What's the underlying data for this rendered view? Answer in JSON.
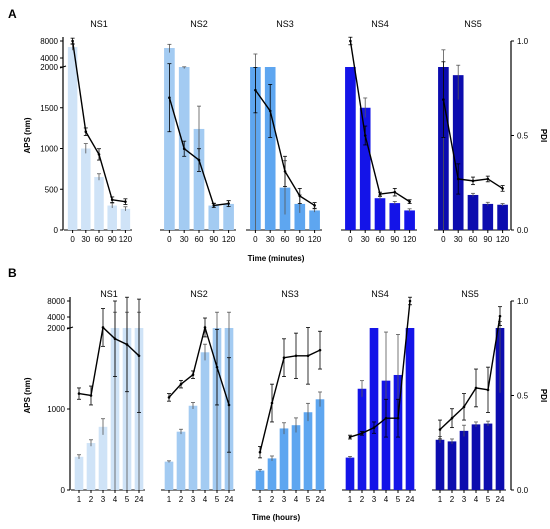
{
  "chart_data": [
    {
      "type": "bar",
      "panel_label": "A",
      "xlabel": "Time (minutes)",
      "ylabel": "APS (nm)",
      "y2label": "PDI",
      "ylim": [
        0,
        8000
      ],
      "y2lim": [
        0,
        1.0
      ],
      "y_axis_segments": [
        {
          "range": [
            0,
            2000
          ],
          "ticks": [
            "0",
            "500",
            "1000",
            "1500",
            "2000"
          ]
        },
        {
          "range": [
            2000,
            8000
          ],
          "ticks": [
            "4000",
            "8000"
          ]
        }
      ],
      "y2_ticks": [
        "0.0",
        "0.5",
        "1.0"
      ],
      "categories": [
        "0",
        "30",
        "60",
        "90",
        "120"
      ],
      "series": [
        {
          "name": "NS1",
          "color": "#cfe3f7",
          "values": [
            5800,
            1000,
            650,
            300,
            260
          ],
          "errors": [
            900,
            60,
            40,
            30,
            25
          ],
          "pdi": [
            1.0,
            0.52,
            0.4,
            0.16,
            0.15
          ],
          "pdi_errors": [
            0.015,
            0.02,
            0.03,
            0.015,
            0.015
          ]
        },
        {
          "name": "NS2",
          "color": "#a3cbf2",
          "values": [
            5500,
            2000,
            1240,
            300,
            320
          ],
          "errors": [
            1200,
            20,
            280,
            30,
            40
          ],
          "pdi": [
            0.7,
            0.43,
            0.37,
            0.13,
            0.14
          ],
          "pdi_errors": [
            0.18,
            0.04,
            0.06,
            0.01,
            0.015
          ]
        },
        {
          "name": "NS3",
          "color": "#5ea6f0",
          "values": [
            2000,
            2000,
            520,
            320,
            240
          ],
          "errors": [
            2000,
            0,
            330,
            110,
            20
          ],
          "pdi": [
            0.74,
            0.63,
            0.31,
            0.18,
            0.13
          ],
          "pdi_errors": [
            0.12,
            0.14,
            0.08,
            0.04,
            0.015
          ]
        },
        {
          "name": "NS4",
          "color": "#1414e8",
          "values": [
            2000,
            1500,
            390,
            330,
            240
          ],
          "errors": [
            0,
            120,
            20,
            20,
            20
          ],
          "pdi": [
            1.0,
            0.5,
            0.19,
            0.2,
            0.15
          ],
          "pdi_errors": [
            0.02,
            0.05,
            0.01,
            0.02,
            0.01
          ]
        },
        {
          "name": "NS5",
          "color": "#0c0cae",
          "values": [
            2000,
            1900,
            430,
            320,
            310
          ],
          "errors": [
            3000,
            300,
            20,
            20,
            15
          ],
          "pdi": [
            0.69,
            0.27,
            0.26,
            0.27,
            0.22
          ],
          "pdi_errors": [
            0.2,
            0.08,
            0.02,
            0.015,
            0.015
          ]
        }
      ]
    },
    {
      "type": "bar",
      "panel_label": "B",
      "xlabel": "Time (hours)",
      "ylabel": "APS (nm)",
      "y2label": "PDI",
      "ylim": [
        0,
        8000
      ],
      "y2lim": [
        0,
        1.0
      ],
      "y_axis_segments": [
        {
          "range": [
            0,
            2000
          ],
          "ticks": [
            "0",
            "1000",
            "2000"
          ]
        },
        {
          "range": [
            2000,
            8000
          ],
          "ticks": [
            "4000",
            "8000"
          ]
        }
      ],
      "y2_ticks": [
        "0.0",
        "0.5",
        "1.0"
      ],
      "categories": [
        "1",
        "2",
        "3",
        "4",
        "5",
        "24"
      ],
      "series": [
        {
          "name": "NS1",
          "color": "#cfe3f7",
          "values": [
            410,
            580,
            780,
            2000,
            2000,
            2000
          ],
          "errors": [
            25,
            40,
            100,
            2500,
            2500,
            2500
          ],
          "pdi": [
            0.51,
            0.5,
            0.86,
            0.8,
            0.77,
            0.71
          ],
          "pdi_errors": [
            0.03,
            0.05,
            0.1,
            0.2,
            0.25,
            0.3
          ]
        },
        {
          "name": "NS2",
          "color": "#a3cbf2",
          "values": [
            350,
            720,
            1040,
            1700,
            2000,
            2000
          ],
          "errors": [
            10,
            30,
            40,
            100,
            2500,
            2500
          ],
          "pdi": [
            0.49,
            0.56,
            0.61,
            0.86,
            0.65,
            0.45
          ],
          "pdi_errors": [
            0.02,
            0.02,
            0.02,
            0.05,
            0.2,
            0.25
          ]
        },
        {
          "name": "NS3",
          "color": "#5ea6f0",
          "values": [
            240,
            390,
            760,
            800,
            960,
            1120
          ],
          "errors": [
            15,
            30,
            70,
            90,
            110,
            90
          ],
          "pdi": [
            0.2,
            0.46,
            0.7,
            0.71,
            0.71,
            0.74
          ],
          "pdi_errors": [
            0.03,
            0.1,
            0.1,
            0.12,
            0.15,
            0.1
          ]
        },
        {
          "name": "NS4",
          "color": "#1414e8",
          "values": [
            400,
            1250,
            2000,
            1350,
            1420,
            2000
          ],
          "errors": [
            15,
            100,
            0,
            600,
            500,
            0
          ],
          "pdi": [
            0.28,
            0.3,
            0.33,
            0.38,
            0.38,
            1.0
          ],
          "pdi_errors": [
            0.01,
            0.01,
            0.03,
            0.1,
            0.1,
            0.02
          ]
        },
        {
          "name": "NS5",
          "color": "#0c0cae",
          "values": [
            620,
            600,
            730,
            810,
            820,
            2000
          ],
          "errors": [
            40,
            30,
            70,
            30,
            30,
            800
          ],
          "pdi": [
            0.32,
            0.38,
            0.44,
            0.54,
            0.53,
            0.92
          ],
          "pdi_errors": [
            0.05,
            0.05,
            0.07,
            0.1,
            0.12,
            0.05
          ]
        }
      ]
    }
  ]
}
